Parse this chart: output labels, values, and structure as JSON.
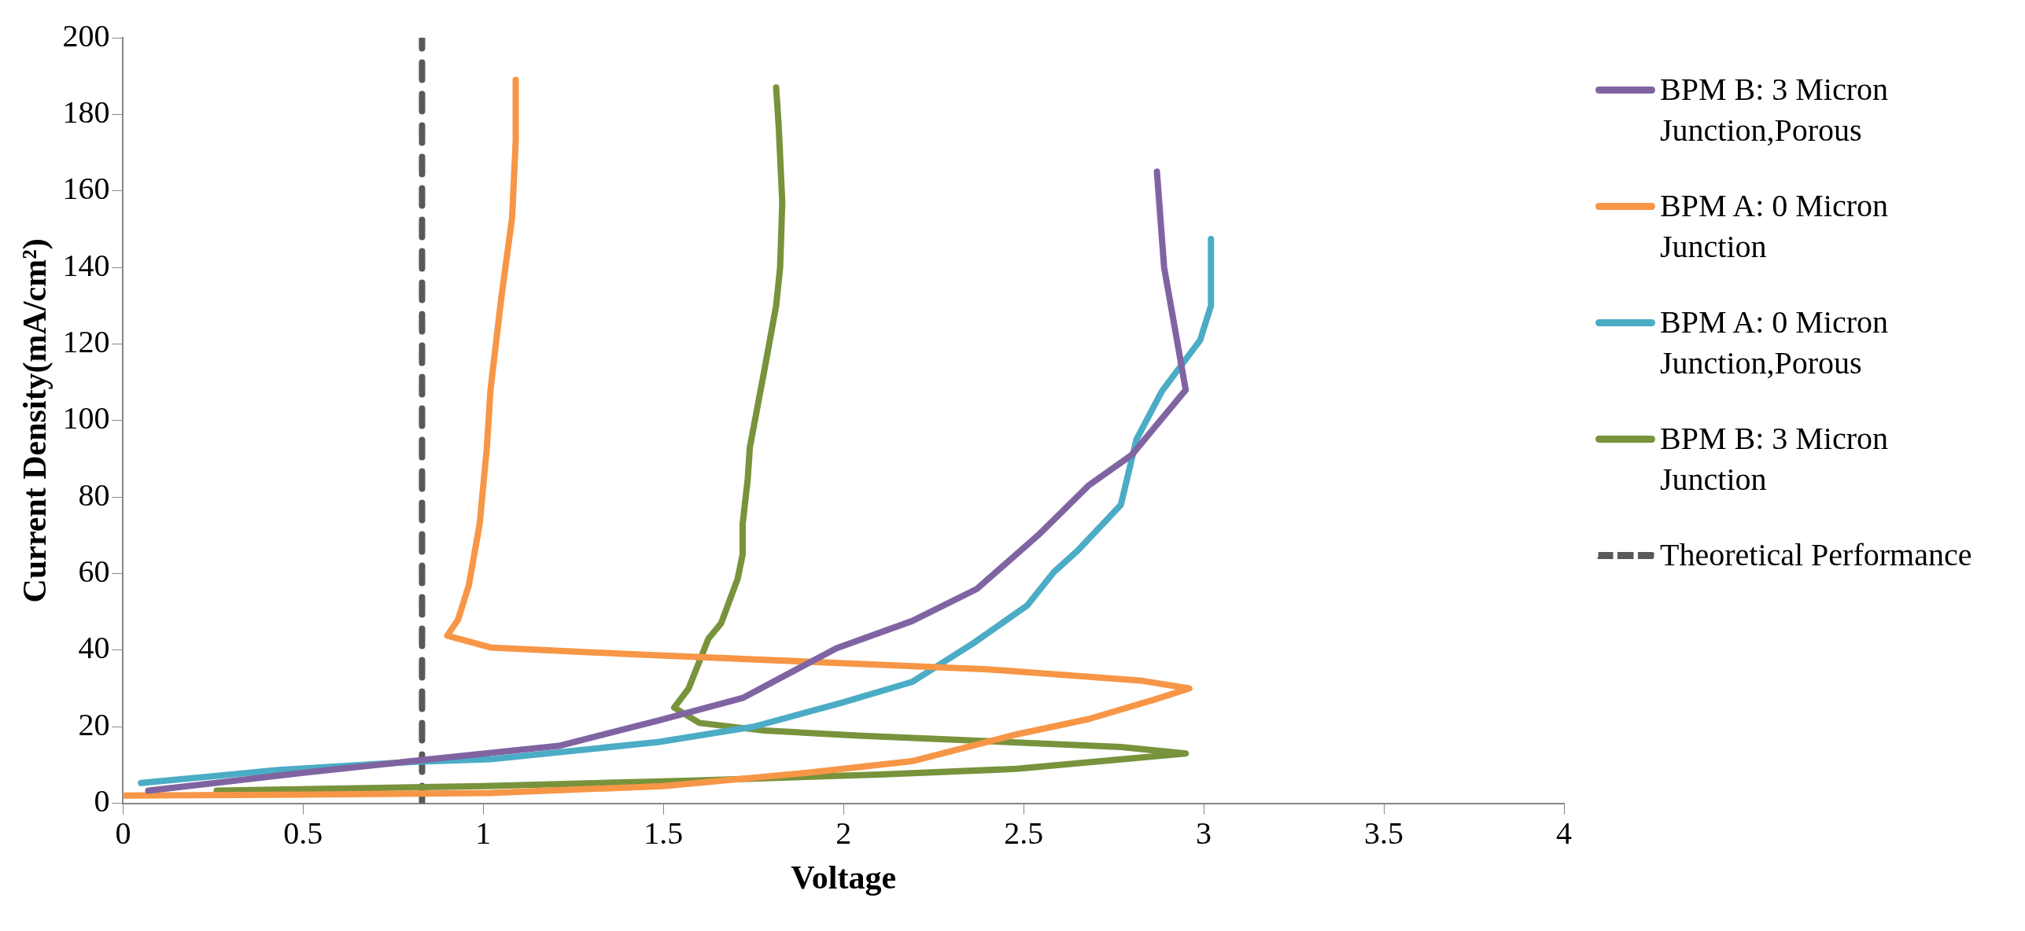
{
  "chart_data": {
    "type": "line",
    "xlabel": "Voltage",
    "ylabel": "Current Density(mA/cm²)",
    "xlim": [
      0,
      4
    ],
    "xticks": [
      0,
      0.5,
      1,
      1.5,
      2,
      2.5,
      3,
      3.5,
      4
    ],
    "ylim": [
      0,
      200
    ],
    "yticks": [
      0,
      20,
      40,
      60,
      80,
      100,
      120,
      140,
      160,
      180,
      200
    ],
    "legend": "right",
    "marker": "none",
    "grid": false,
    "series": [
      {
        "name": "BPM B: 3 Micron Junction,Porous",
        "color": "#8064a2",
        "x": [
          0.07,
          0.5,
          0.8,
          1.21,
          1.49,
          1.72,
          1.98,
          2.19,
          2.37,
          2.54,
          2.68,
          2.8,
          2.95,
          2.89,
          2.87
        ],
        "values": [
          3.3,
          8,
          11,
          15,
          21.7,
          27.5,
          40.5,
          47.6,
          56,
          70,
          83,
          91,
          108,
          140,
          165
        ]
      },
      {
        "name": "BPM A: 0 Micron Junction",
        "color": "#f79646",
        "x": [
          0,
          0.5,
          1.02,
          1.5,
          1.9,
          2.19,
          2.48,
          2.68,
          2.86,
          2.96,
          2.83,
          2.4,
          1.9,
          1.4,
          1.02,
          0.9,
          0.93,
          0.96,
          0.99,
          1.01,
          1.02,
          1.05,
          1.08,
          1.09,
          1.09
        ],
        "values": [
          2,
          2.3,
          2.7,
          4.5,
          8,
          11,
          18,
          22,
          27,
          30,
          32,
          35,
          37,
          39,
          40.7,
          43.8,
          48,
          57,
          73,
          93,
          108,
          132,
          153,
          173,
          189
        ]
      },
      {
        "name": "BPM A: 0 Micron Junction,Porous",
        "color": "#4bacc6",
        "x": [
          0.05,
          0.43,
          0.8,
          1.02,
          1.485,
          1.75,
          1.996,
          2.19,
          2.36,
          2.51,
          2.584,
          2.65,
          2.77,
          2.813,
          2.884,
          2.99,
          3.02,
          3.02
        ],
        "values": [
          5.3,
          8.7,
          10.8,
          11.5,
          16,
          20,
          26.3,
          31.7,
          41.8,
          51.7,
          60.4,
          66,
          78,
          95,
          107.7,
          121,
          130,
          147.4
        ]
      },
      {
        "name": "BPM B: 3 Micron Junction",
        "color": "#77933c",
        "x": [
          0.26,
          1,
          1.6,
          2.1,
          2.48,
          2.95,
          2.77,
          2.04,
          1.78,
          1.6,
          1.53,
          1.57,
          1.625,
          1.66,
          1.706,
          1.72,
          1.72,
          1.734,
          1.74,
          1.78,
          1.813,
          1.824,
          1.83,
          1.82,
          1.813
        ],
        "values": [
          3.3,
          4.5,
          6,
          7.5,
          9,
          13,
          14.7,
          17.7,
          19,
          21,
          25,
          30,
          43,
          47,
          58.6,
          65,
          73,
          84.6,
          93,
          113,
          130,
          140,
          157,
          177,
          187
        ]
      },
      {
        "name": "Theoretical Performance",
        "color": "#595959",
        "line_style": "dashed",
        "x": [
          0.83,
          0.83
        ],
        "values": [
          0,
          200
        ]
      }
    ]
  }
}
